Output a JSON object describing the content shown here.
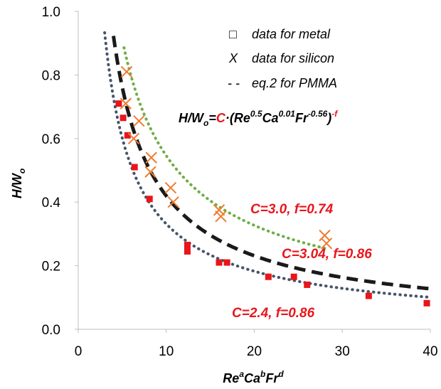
{
  "chart_data": {
    "type": "scatter",
    "xlabel": {
      "base1": "Re",
      "sup1": "a",
      "base2": "Ca",
      "sup2": "b",
      "base3": "Fr",
      "sup3": "d"
    },
    "ylabel": {
      "base": "H/W",
      "sub": "o"
    },
    "xlim": [
      0,
      40
    ],
    "ylim": [
      0,
      1.0
    ],
    "x_ticks": [
      0,
      10,
      20,
      30,
      40
    ],
    "x_tick_labels": [
      "0",
      "10",
      "20",
      "30",
      "40"
    ],
    "y_ticks": [
      0,
      0.2,
      0.4,
      0.6,
      0.8,
      1.0
    ],
    "y_tick_labels": [
      "0.0",
      "0.2",
      "0.4",
      "0.6",
      "0.8",
      "1.0"
    ],
    "grid": false,
    "legend_position": "top-right",
    "legend": [
      {
        "marker": "□",
        "label": "data for metal"
      },
      {
        "marker": "X",
        "label": "data for silicon"
      },
      {
        "marker": "- -",
        "label": "eq.2 for PMMA"
      }
    ],
    "equation": {
      "lhs": "H/W",
      "lhs_sub": "o",
      "eq": "=",
      "c": "C",
      "dot": "·(",
      "re": "Re",
      "re_exp": "0.5",
      "ca": "Ca",
      "ca_exp": "0.01",
      "fr": "Fr",
      "fr_exp": "-0.56",
      "close": ")",
      "f_exp": "-f"
    },
    "annotations": {
      "silicon": "C=3.0, f=0.74",
      "pmma": "C=3.04, f=0.86",
      "metal": "C=2.4,  f=0.86"
    },
    "colors": {
      "metal": "#e8161b",
      "silicon": "#ed7d31",
      "pmma_line": "#1a1a1a",
      "silicon_fit": "#70ad47",
      "metal_fit": "#44546a",
      "annotation": "#e8161b"
    },
    "series": [
      {
        "name": "data for metal",
        "marker": "square",
        "points": [
          [
            4.6,
            0.71
          ],
          [
            5.1,
            0.665
          ],
          [
            5.6,
            0.61
          ],
          [
            6.4,
            0.51
          ],
          [
            8.1,
            0.41
          ],
          [
            12.4,
            0.265
          ],
          [
            12.4,
            0.245
          ],
          [
            16.0,
            0.21
          ],
          [
            16.9,
            0.21
          ],
          [
            21.6,
            0.165
          ],
          [
            24.5,
            0.165
          ],
          [
            26.0,
            0.14
          ],
          [
            33.0,
            0.105
          ],
          [
            39.6,
            0.082
          ]
        ]
      },
      {
        "name": "data for silicon",
        "marker": "x",
        "points": [
          [
            5.5,
            0.81
          ],
          [
            5.4,
            0.71
          ],
          [
            6.3,
            0.6
          ],
          [
            6.9,
            0.655
          ],
          [
            8.3,
            0.54
          ],
          [
            8.2,
            0.495
          ],
          [
            10.5,
            0.445
          ],
          [
            10.8,
            0.4
          ],
          [
            16.0,
            0.375
          ],
          [
            16.2,
            0.355
          ],
          [
            28.0,
            0.295
          ],
          [
            28.2,
            0.27
          ]
        ]
      },
      {
        "name": "eq.2 for PMMA",
        "style": "dashed",
        "C": 3.04,
        "f": 0.86,
        "x_range": [
          4.0,
          40.0
        ]
      },
      {
        "fit": "silicon",
        "style": "dotted",
        "C": 3.0,
        "f": 0.74,
        "x_range": [
          5.2,
          28.0
        ]
      },
      {
        "fit": "metal",
        "style": "dotted",
        "C": 2.4,
        "f": 0.86,
        "x_range": [
          3.0,
          40.0
        ]
      }
    ]
  }
}
